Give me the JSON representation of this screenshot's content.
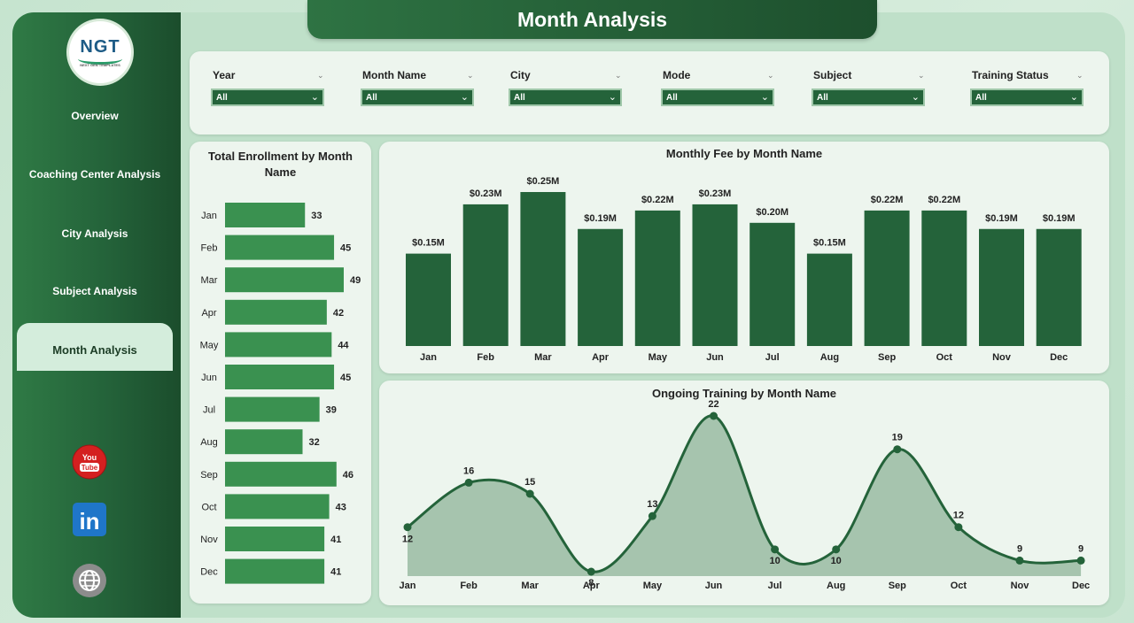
{
  "page": {
    "title": "Month Analysis"
  },
  "logo": {
    "text": "NGT",
    "subtitle": "NEXT GEN TEMPLATES"
  },
  "nav": {
    "items": [
      {
        "label": "Overview"
      },
      {
        "label": "Coaching Center Analysis"
      },
      {
        "label": "City Analysis"
      },
      {
        "label": "Subject Analysis"
      },
      {
        "label": "Month Analysis",
        "active": true
      }
    ]
  },
  "social": {
    "youtube_text": "You Tube",
    "linkedin_text": "in"
  },
  "filters": [
    {
      "label": "Year",
      "value": "All"
    },
    {
      "label": "Month Name",
      "value": "All"
    },
    {
      "label": "City",
      "value": "All"
    },
    {
      "label": "Mode",
      "value": "All"
    },
    {
      "label": "Subject",
      "value": "All"
    },
    {
      "label": "Training Status",
      "value": "All"
    }
  ],
  "colors": {
    "primary": "#24633a",
    "bar_light": "#3a9150",
    "area": "#9dbfa6",
    "title_bg": "#2e7343"
  },
  "chart_data": [
    {
      "type": "bar",
      "orientation": "horizontal",
      "title": "Total Enrollment by Month Name",
      "categories": [
        "Jan",
        "Feb",
        "Mar",
        "Apr",
        "May",
        "Jun",
        "Jul",
        "Aug",
        "Sep",
        "Oct",
        "Nov",
        "Dec"
      ],
      "values": [
        33,
        45,
        49,
        42,
        44,
        45,
        39,
        32,
        46,
        43,
        41,
        41
      ]
    },
    {
      "type": "bar",
      "title": "Monthly Fee by Month Name",
      "categories": [
        "Jan",
        "Feb",
        "Mar",
        "Apr",
        "May",
        "Jun",
        "Jul",
        "Aug",
        "Sep",
        "Oct",
        "Nov",
        "Dec"
      ],
      "values": [
        0.15,
        0.23,
        0.25,
        0.19,
        0.22,
        0.23,
        0.2,
        0.15,
        0.22,
        0.22,
        0.19,
        0.19
      ],
      "labels": [
        "$0.15M",
        "$0.23M",
        "$0.25M",
        "$0.19M",
        "$0.22M",
        "$0.23M",
        "$0.20M",
        "$0.15M",
        "$0.22M",
        "$0.22M",
        "$0.19M",
        "$0.19M"
      ]
    },
    {
      "type": "area",
      "title": "Ongoing Training by Month Name",
      "categories": [
        "Jan",
        "Feb",
        "Mar",
        "Apr",
        "May",
        "Jun",
        "Jul",
        "Aug",
        "Sep",
        "Oct",
        "Nov",
        "Dec"
      ],
      "values": [
        12,
        16,
        15,
        8,
        13,
        22,
        10,
        10,
        19,
        12,
        9,
        9
      ]
    }
  ]
}
